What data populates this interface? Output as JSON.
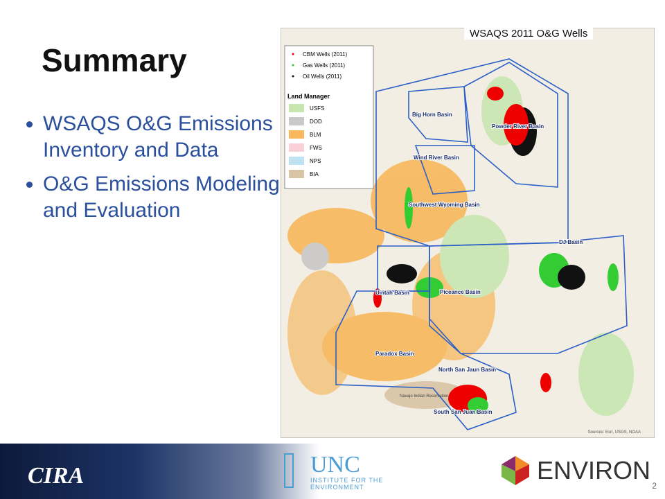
{
  "title": "Summary",
  "bullets": [
    "WSAQS O&G Emissions Inventory and Data",
    "O&G Emissions Modeling and Evaluation"
  ],
  "map": {
    "title": "WSAQS 2011 O&G Wells",
    "legend": {
      "wells": [
        "CBM Wells (2011)",
        "Gas Wells (2011)",
        "Oil Wells (2011)"
      ],
      "land_manager_title": "Land Manager",
      "land_managers": [
        "USFS",
        "DOD",
        "BLM",
        "FWS",
        "NPS",
        "BIA"
      ]
    },
    "basins": [
      "Big Horn Basin",
      "Powder River Basin",
      "Wind River Basin",
      "Southwest Wyoming Basin",
      "DJ Basin",
      "Uintah Basin",
      "Piceance Basin",
      "Paradox Basin",
      "North San Jaun Basin",
      "South San Juan Basin"
    ],
    "reservation": "Navajo Indian Reservation",
    "source": "Sources: Esri, USGS, NOAA"
  },
  "footer": {
    "logos": [
      "CIRA",
      "UNC",
      "INSTITUTE FOR THE ENVIRONMENT",
      "ENVIRON"
    ],
    "page_number": "2"
  }
}
